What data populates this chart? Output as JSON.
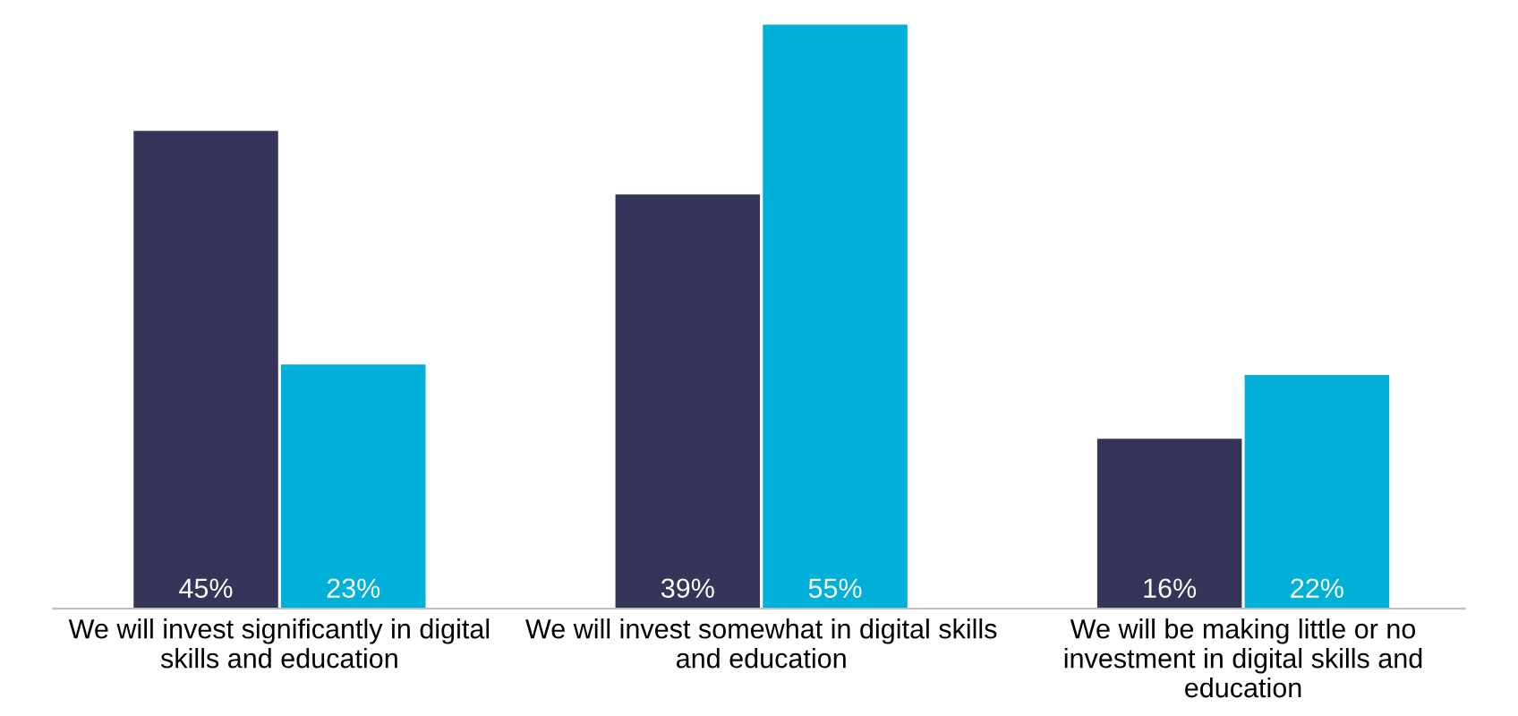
{
  "chart_data": {
    "type": "bar",
    "categories": [
      "We will invest significantly in digital\nskills and education",
      "We will invest somewhat in digital skills\nand education",
      "We will be making little or no\ninvestment in digital skills and\neducation"
    ],
    "series": [
      {
        "color": "#35355a",
        "values": [
          45,
          39,
          16
        ],
        "value_labels": [
          "45%",
          "39%",
          "16%"
        ]
      },
      {
        "color": "#00b0d8",
        "values": [
          23,
          55,
          22
        ],
        "value_labels": [
          "23%",
          "55%",
          "22%"
        ]
      }
    ],
    "grid": false,
    "legend": false
  }
}
